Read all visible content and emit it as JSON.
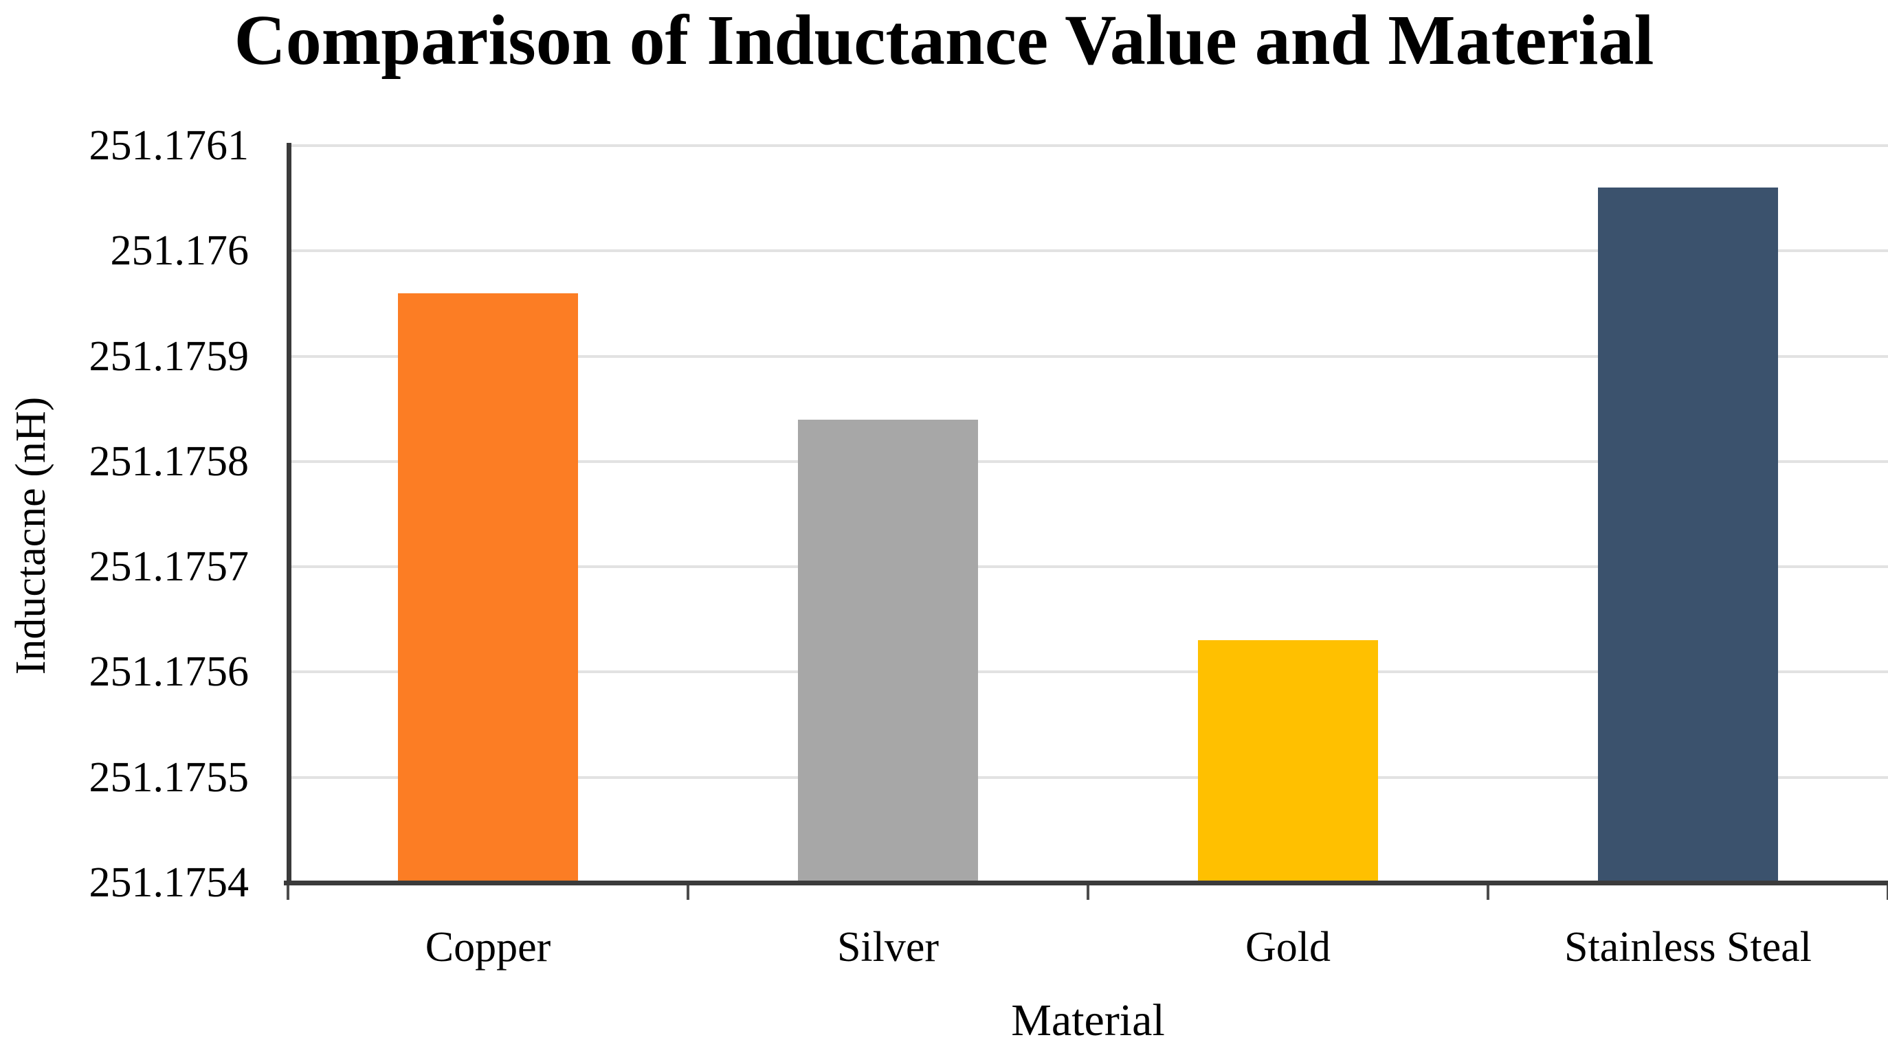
{
  "chart_data": {
    "type": "bar",
    "title": "Comparison of Inductance Value and Material",
    "xlabel": "Material",
    "ylabel": "Inductacne (nH)",
    "categories": [
      "Copper",
      "Silver",
      "Gold",
      "Stainless Steal"
    ],
    "values": [
      251.17596,
      251.17584,
      251.17563,
      251.17606
    ],
    "ylim": [
      251.1754,
      251.1761
    ],
    "y_tick_values": [
      251.1754,
      251.1755,
      251.1756,
      251.1757,
      251.1758,
      251.1759,
      251.176,
      251.1761
    ],
    "y_tick_labels": [
      "251.1754",
      "251.1755",
      "251.1756",
      "251.1757",
      "251.1758",
      "251.1759",
      "251.176",
      "251.1761"
    ],
    "bar_colors": [
      "#FC7D24",
      "#A7A7A7",
      "#FFC000",
      "#3B526D"
    ],
    "grid": "horizontal",
    "legend": "none"
  },
  "style_colors": {
    "axis": "#3B3B3B",
    "gridline": "#E2E2E2",
    "tick": "#4D4D4D",
    "text": "#000000",
    "background": "#FFFFFF"
  }
}
